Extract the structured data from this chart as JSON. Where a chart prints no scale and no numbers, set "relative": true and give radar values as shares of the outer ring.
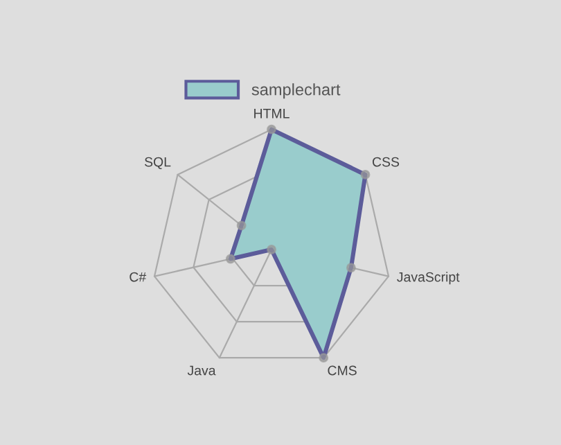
{
  "chart_data": {
    "type": "radar",
    "relative": true,
    "categories": [
      "HTML",
      "CSS",
      "JavaScript",
      "CMS",
      "Java",
      "C#",
      "SQL"
    ],
    "series": [
      {
        "name": "samplechart",
        "color": "#99cccc",
        "values": [
          1.0,
          1.0,
          0.68,
          1.0,
          0.0,
          0.35,
          0.32
        ]
      }
    ],
    "grid": true,
    "legend": "top",
    "marker": "circle"
  }
}
